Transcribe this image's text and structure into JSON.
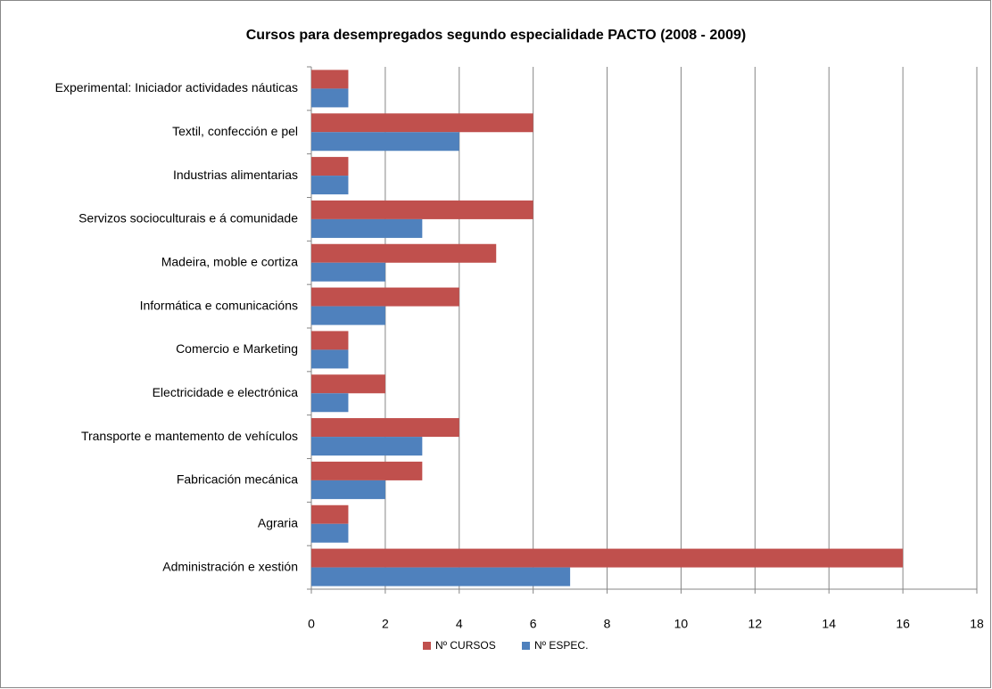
{
  "chart_data": {
    "type": "bar",
    "orientation": "horizontal",
    "title": "Cursos para desempregados segundo especialidade PACTO (2008 - 2009)",
    "categories": [
      "Experimental: Iniciador actividades náuticas",
      "Textil, confección e pel",
      "Industrias alimentarias",
      "Servizos socioculturais e á comunidade",
      "Madeira, moble e cortiza",
      "Informática e comunicacións",
      "Comercio e Marketing",
      "Electricidade e electrónica",
      "Transporte e mantemento de vehículos",
      "Fabricación mecánica",
      "Agraria",
      "Administración e xestión"
    ],
    "series": [
      {
        "name": "Nº CURSOS",
        "color": "#c0504d",
        "values": [
          1,
          6,
          1,
          6,
          5,
          4,
          1,
          2,
          4,
          3,
          1,
          16
        ]
      },
      {
        "name": "Nº ESPEC.",
        "color": "#4f81bd",
        "values": [
          1,
          4,
          1,
          3,
          2,
          2,
          1,
          1,
          3,
          2,
          1,
          7
        ]
      }
    ],
    "xlim": [
      0,
      18
    ],
    "xticks": [
      0,
      2,
      4,
      6,
      8,
      10,
      12,
      14,
      16,
      18
    ],
    "grid": true,
    "legend": "bottom"
  }
}
